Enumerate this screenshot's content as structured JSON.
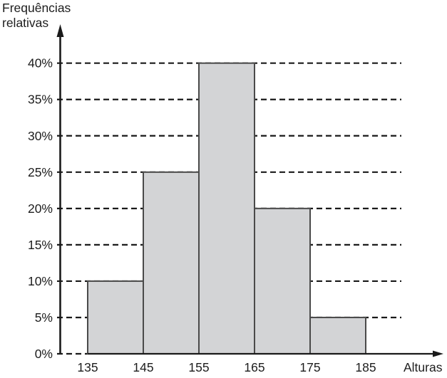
{
  "chart_data": {
    "type": "bar",
    "subtype": "histogram",
    "title": "",
    "ylabel": "Frequências\nrelativas",
    "xlabel": "Alturas",
    "bin_edges": [
      135,
      145,
      155,
      165,
      175,
      185
    ],
    "bins": [
      "135-145",
      "145-155",
      "155-165",
      "165-175",
      "175-185"
    ],
    "values": [
      10,
      25,
      40,
      20,
      5
    ],
    "value_unit": "%",
    "x_tick_labels": [
      "135",
      "145",
      "155",
      "165",
      "175",
      "185"
    ],
    "y_tick_values": [
      0,
      5,
      10,
      15,
      20,
      25,
      30,
      35,
      40
    ],
    "y_tick_labels": [
      "0%",
      "5%",
      "10%",
      "15%",
      "20%",
      "25%",
      "30%",
      "35%",
      "40%"
    ],
    "ylim": [
      0,
      40
    ],
    "grid": "horizontal-dashed",
    "legend": "none",
    "colors": {
      "bar_fill": "#d3d4d6",
      "bar_stroke": "#4a4a4a",
      "axis": "#1a1a1a",
      "gridline": "#1a1a1a",
      "text": "#1d1d1d",
      "background": "#ffffff"
    }
  }
}
